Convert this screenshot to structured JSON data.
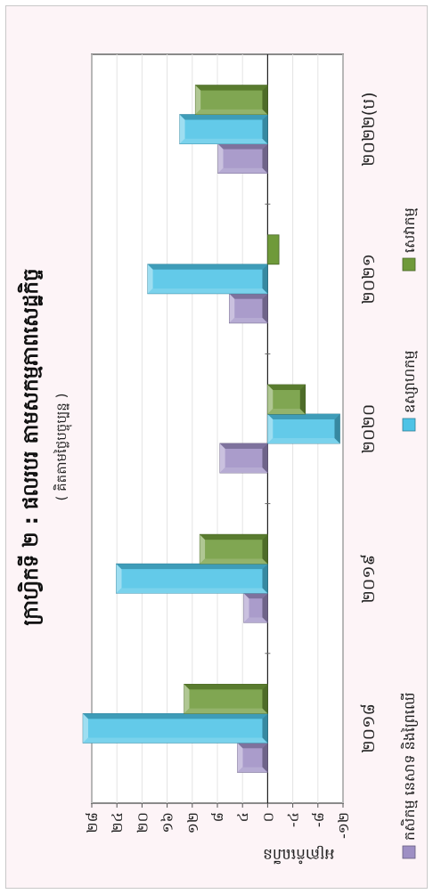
{
  "chart_data": {
    "type": "bar",
    "title": "ក្រាហ្វិកទី ២ : ផលរបរ តាមសកម្មភាពសេដ្ឋកិច្ច",
    "subtitle": "( គិតតាមថ្លៃបច្ចុប្បន្ន )",
    "ylabel": "អត្រាកំណើន",
    "xlabel": "",
    "categories": [
      "២០១៨",
      "២០១៩",
      "២០២០",
      "២០២១",
      "២០២២(ប)"
    ],
    "series": [
      {
        "name": "កសិកម្ម នេសាទ និងព្រៃឈើ",
        "values": [
          4.8,
          3.8,
          7.6,
          6.1,
          7.9
        ],
        "color": "#9e8fc4"
      },
      {
        "name": "ឧស្សាហកម្ម",
        "values": [
          29.4,
          24.1,
          -11.5,
          19.1,
          14.0
        ],
        "color": "#4ec3e6"
      },
      {
        "name": "សេវាកម្ម",
        "values": [
          13.3,
          10.8,
          -6.0,
          -1.8,
          11.5
        ],
        "color": "#6f9a3a"
      }
    ],
    "ylim": [
      -12,
      28
    ],
    "yticks": [
      "-១២",
      "-៨",
      "-៤",
      "០",
      "៤",
      "៨",
      "១២",
      "១៦",
      "២០",
      "២៤",
      "២៨"
    ],
    "grid": true,
    "legend": "bottom"
  }
}
